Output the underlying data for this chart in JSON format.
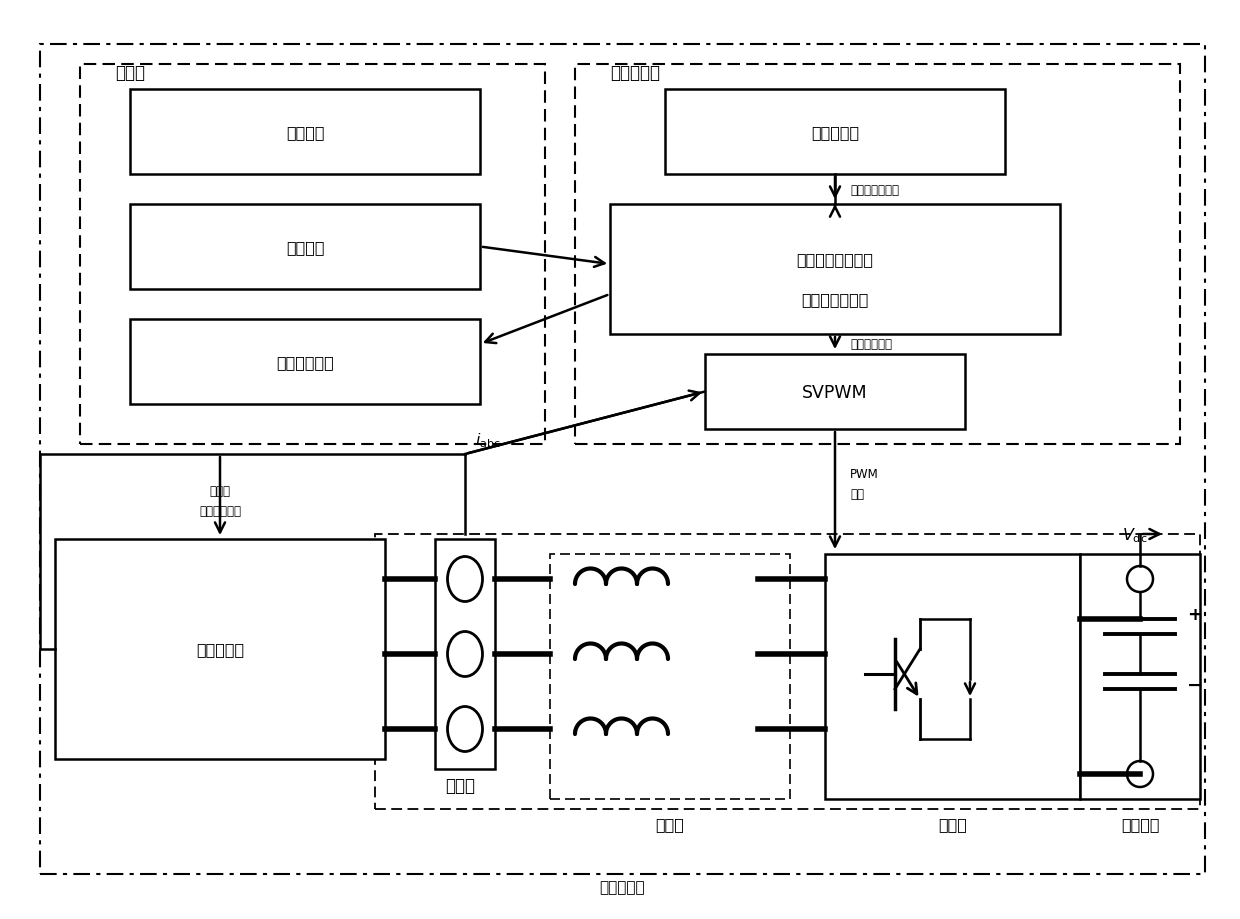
{
  "bg_color": "#ffffff",
  "shangweiji_label": "上位机",
  "shishi_label": "实时仿真器",
  "control_cmd": "控制指令",
  "online_tune": "在线调参",
  "realtime_result": "实时仿真结果",
  "yuandongji": "原动机模型",
  "moni_target_line1": "模拟目标电机模型",
  "moni_target_line2": "电机模拟器模型",
  "svpwm": "SVPWM",
  "motor_driver": "电机驱动器",
  "filter_label": "滤波器",
  "inverter_label": "逆变器",
  "dc_bus_label": "直流母线",
  "main_circuit_label": "主回路",
  "motor_simulator_label": "电机模拟器",
  "fuzai_label": "负载转矩或转速",
  "dengxiao_label": "等效反电动势",
  "pwm_label1": "PWM",
  "pwm_label2": "脉冲",
  "speed_label1": "转速、",
  "speed_label2": "转子位置角等",
  "iabc_label": "$i_{\\mathrm{abc}}$",
  "vdc_label": "$V_{\\mathrm{dc}}$"
}
